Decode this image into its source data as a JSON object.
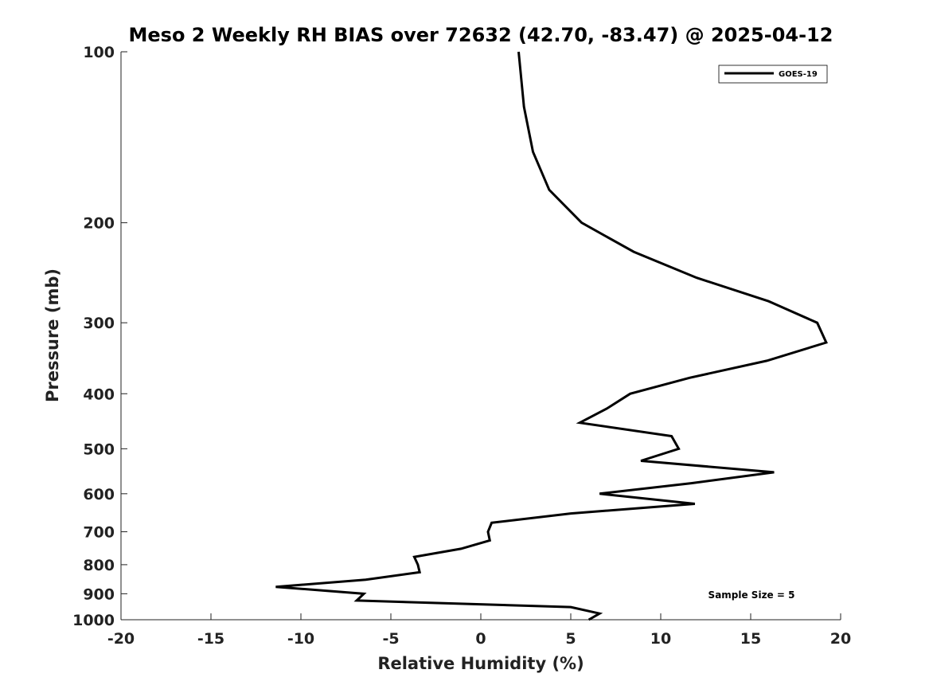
{
  "chart_data": {
    "type": "line",
    "title": "Meso 2 Weekly RH BIAS over 72632 (42.70, -83.47) @ 2025-04-12",
    "xlabel": "Relative Humidity (%)",
    "ylabel": "Pressure (mb)",
    "xlim": [
      -20,
      20
    ],
    "ylim": [
      1000,
      100
    ],
    "y_scale": "log",
    "y_reversed": true,
    "grid": false,
    "legend_position": "top-right",
    "x_ticks": [
      -20,
      -15,
      -10,
      -5,
      0,
      5,
      10,
      15,
      20
    ],
    "x_tick_labels": [
      "-20",
      "-15",
      "-10",
      "-5",
      "0",
      "5",
      "10",
      "15",
      "20"
    ],
    "y_ticks": [
      100,
      200,
      300,
      400,
      500,
      600,
      700,
      800,
      900,
      1000
    ],
    "y_tick_labels": [
      "100",
      "200",
      "300",
      "400",
      "500",
      "600",
      "700",
      "800",
      "900",
      "1000"
    ],
    "annotation": "Sample Size = 5",
    "series": [
      {
        "name": "GOES-19",
        "color": "#000000",
        "points": [
          {
            "x": 2.1,
            "p": 100
          },
          {
            "x": 2.4,
            "p": 125
          },
          {
            "x": 2.9,
            "p": 150
          },
          {
            "x": 3.8,
            "p": 175
          },
          {
            "x": 5.6,
            "p": 200
          },
          {
            "x": 8.5,
            "p": 225
          },
          {
            "x": 12.0,
            "p": 250
          },
          {
            "x": 16.0,
            "p": 275
          },
          {
            "x": 18.7,
            "p": 300
          },
          {
            "x": 19.2,
            "p": 325
          },
          {
            "x": 15.9,
            "p": 350
          },
          {
            "x": 11.6,
            "p": 375
          },
          {
            "x": 8.3,
            "p": 400
          },
          {
            "x": 7.0,
            "p": 425
          },
          {
            "x": 5.5,
            "p": 450
          },
          {
            "x": 10.6,
            "p": 475
          },
          {
            "x": 11.0,
            "p": 500
          },
          {
            "x": 8.9,
            "p": 525
          },
          {
            "x": 16.3,
            "p": 550
          },
          {
            "x": 11.7,
            "p": 575
          },
          {
            "x": 6.6,
            "p": 600
          },
          {
            "x": 11.9,
            "p": 625
          },
          {
            "x": 5.0,
            "p": 650
          },
          {
            "x": 0.6,
            "p": 675
          },
          {
            "x": 0.4,
            "p": 700
          },
          {
            "x": 0.5,
            "p": 725
          },
          {
            "x": -1.1,
            "p": 750
          },
          {
            "x": -3.7,
            "p": 775
          },
          {
            "x": -3.5,
            "p": 800
          },
          {
            "x": -3.4,
            "p": 825
          },
          {
            "x": -6.4,
            "p": 850
          },
          {
            "x": -11.4,
            "p": 875
          },
          {
            "x": -6.5,
            "p": 900
          },
          {
            "x": -6.9,
            "p": 925
          },
          {
            "x": 5.0,
            "p": 950
          },
          {
            "x": 6.6,
            "p": 975
          },
          {
            "x": 6.0,
            "p": 1000
          }
        ]
      }
    ]
  }
}
